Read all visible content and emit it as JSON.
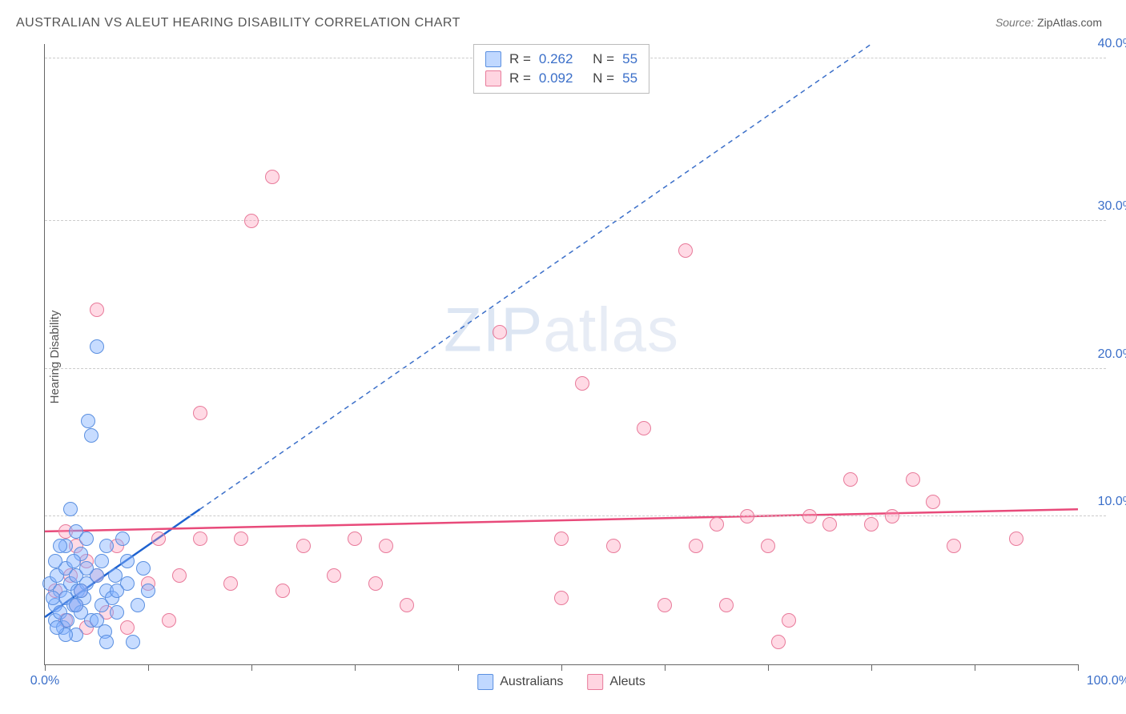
{
  "title": "AUSTRALIAN VS ALEUT HEARING DISABILITY CORRELATION CHART",
  "source_label": "Source:",
  "source_value": "ZipAtlas.com",
  "ylabel": "Hearing Disability",
  "watermark_zip": "ZIP",
  "watermark_atlas": "atlas",
  "chart": {
    "type": "scatter",
    "background_color": "#ffffff",
    "grid_color": "#cccccc",
    "grid_style": "dashed",
    "axis_color": "#666666",
    "tick_label_color": "#3b6fc9",
    "tick_label_fontsize": 16,
    "xlim": [
      0,
      100
    ],
    "ylim": [
      0,
      42
    ],
    "x_ticks": [
      0,
      10,
      20,
      30,
      40,
      50,
      60,
      70,
      80,
      90,
      100
    ],
    "x_tick_labels": {
      "0": "0.0%",
      "100": "100.0%"
    },
    "y_gridlines": [
      10,
      20,
      30,
      41
    ],
    "y_tick_labels": {
      "10": "10.0%",
      "20": "20.0%",
      "30": "30.0%",
      "41": "40.0%"
    },
    "marker_radius": 9,
    "marker_opacity": 0.4,
    "series": {
      "australians": {
        "label": "Australians",
        "fill_color": "#82b1ff",
        "stroke_color": "#5a8fe0",
        "R": "0.262",
        "N": "55",
        "trend": {
          "solid": {
            "x1": 0,
            "y1": 3.2,
            "x2": 15,
            "y2": 10.5,
            "color": "#1e62d0",
            "width": 2.5
          },
          "dashed": {
            "x1": 15,
            "y1": 10.5,
            "x2": 80,
            "y2": 42,
            "color": "#3b6fc9",
            "width": 1.5,
            "dash": "6,5"
          }
        },
        "points": [
          [
            0.5,
            5.5
          ],
          [
            1,
            3
          ],
          [
            1,
            4
          ],
          [
            1.2,
            6
          ],
          [
            1.5,
            3.5
          ],
          [
            1.5,
            5
          ],
          [
            1.8,
            2.5
          ],
          [
            2,
            4.5
          ],
          [
            2,
            6.5
          ],
          [
            2,
            8
          ],
          [
            2.2,
            3
          ],
          [
            2.5,
            5.5
          ],
          [
            2.5,
            10.5
          ],
          [
            2.8,
            4
          ],
          [
            3,
            2
          ],
          [
            3,
            6
          ],
          [
            3,
            9
          ],
          [
            3.2,
            5
          ],
          [
            3.5,
            3.5
          ],
          [
            3.5,
            7.5
          ],
          [
            3.8,
            4.5
          ],
          [
            4,
            5.5
          ],
          [
            4,
            8.5
          ],
          [
            4.2,
            16.5
          ],
          [
            4.5,
            3
          ],
          [
            4.5,
            15.5
          ],
          [
            5,
            6
          ],
          [
            5,
            21.5
          ],
          [
            5.5,
            4
          ],
          [
            5.5,
            7
          ],
          [
            5.8,
            2.2
          ],
          [
            6,
            5
          ],
          [
            6,
            8
          ],
          [
            6.5,
            4.5
          ],
          [
            6.8,
            6
          ],
          [
            7,
            3.5
          ],
          [
            7.5,
            8.5
          ],
          [
            8,
            5.5
          ],
          [
            8,
            7
          ],
          [
            8.5,
            1.5
          ],
          [
            9,
            4
          ],
          [
            9.5,
            6.5
          ],
          [
            10,
            5
          ],
          [
            1,
            7
          ],
          [
            1.5,
            8
          ],
          [
            2,
            2
          ],
          [
            0.8,
            4.5
          ],
          [
            3,
            4
          ],
          [
            4,
            6.5
          ],
          [
            5,
            3
          ],
          [
            6,
            1.5
          ],
          [
            7,
            5
          ],
          [
            1.2,
            2.5
          ],
          [
            2.8,
            7
          ],
          [
            3.5,
            5
          ]
        ]
      },
      "aleuts": {
        "label": "Aleuts",
        "fill_color": "#ff96b4",
        "stroke_color": "#e87a9a",
        "R": "0.092",
        "N": "55",
        "trend": {
          "solid": {
            "x1": 0,
            "y1": 9.0,
            "x2": 100,
            "y2": 10.5,
            "color": "#e84a7a",
            "width": 2.5
          }
        },
        "points": [
          [
            1,
            5
          ],
          [
            2,
            3
          ],
          [
            2,
            9
          ],
          [
            2.5,
            6
          ],
          [
            3,
            4
          ],
          [
            3,
            8
          ],
          [
            3.5,
            5
          ],
          [
            4,
            7
          ],
          [
            4,
            2.5
          ],
          [
            5,
            6
          ],
          [
            5,
            24
          ],
          [
            6,
            3.5
          ],
          [
            7,
            8
          ],
          [
            8,
            2.5
          ],
          [
            10,
            5.5
          ],
          [
            11,
            8.5
          ],
          [
            12,
            3
          ],
          [
            13,
            6
          ],
          [
            15,
            8.5
          ],
          [
            15,
            17
          ],
          [
            18,
            5.5
          ],
          [
            19,
            8.5
          ],
          [
            20,
            30
          ],
          [
            22,
            33
          ],
          [
            23,
            5
          ],
          [
            25,
            8
          ],
          [
            28,
            6
          ],
          [
            30,
            8.5
          ],
          [
            32,
            5.5
          ],
          [
            33,
            8
          ],
          [
            35,
            4
          ],
          [
            44,
            22.5
          ],
          [
            50,
            4.5
          ],
          [
            50,
            8.5
          ],
          [
            52,
            19
          ],
          [
            55,
            8
          ],
          [
            58,
            16
          ],
          [
            60,
            4
          ],
          [
            62,
            28
          ],
          [
            63,
            8
          ],
          [
            66,
            4
          ],
          [
            68,
            10
          ],
          [
            71,
            1.5
          ],
          [
            72,
            3
          ],
          [
            74,
            10
          ],
          [
            76,
            9.5
          ],
          [
            78,
            12.5
          ],
          [
            80,
            9.5
          ],
          [
            82,
            10
          ],
          [
            84,
            12.5
          ],
          [
            86,
            11
          ],
          [
            88,
            8
          ],
          [
            94,
            8.5
          ],
          [
            70,
            8
          ],
          [
            65,
            9.5
          ]
        ]
      }
    }
  },
  "legend_top": {
    "r_label": "R  =",
    "n_label": "N  ="
  }
}
